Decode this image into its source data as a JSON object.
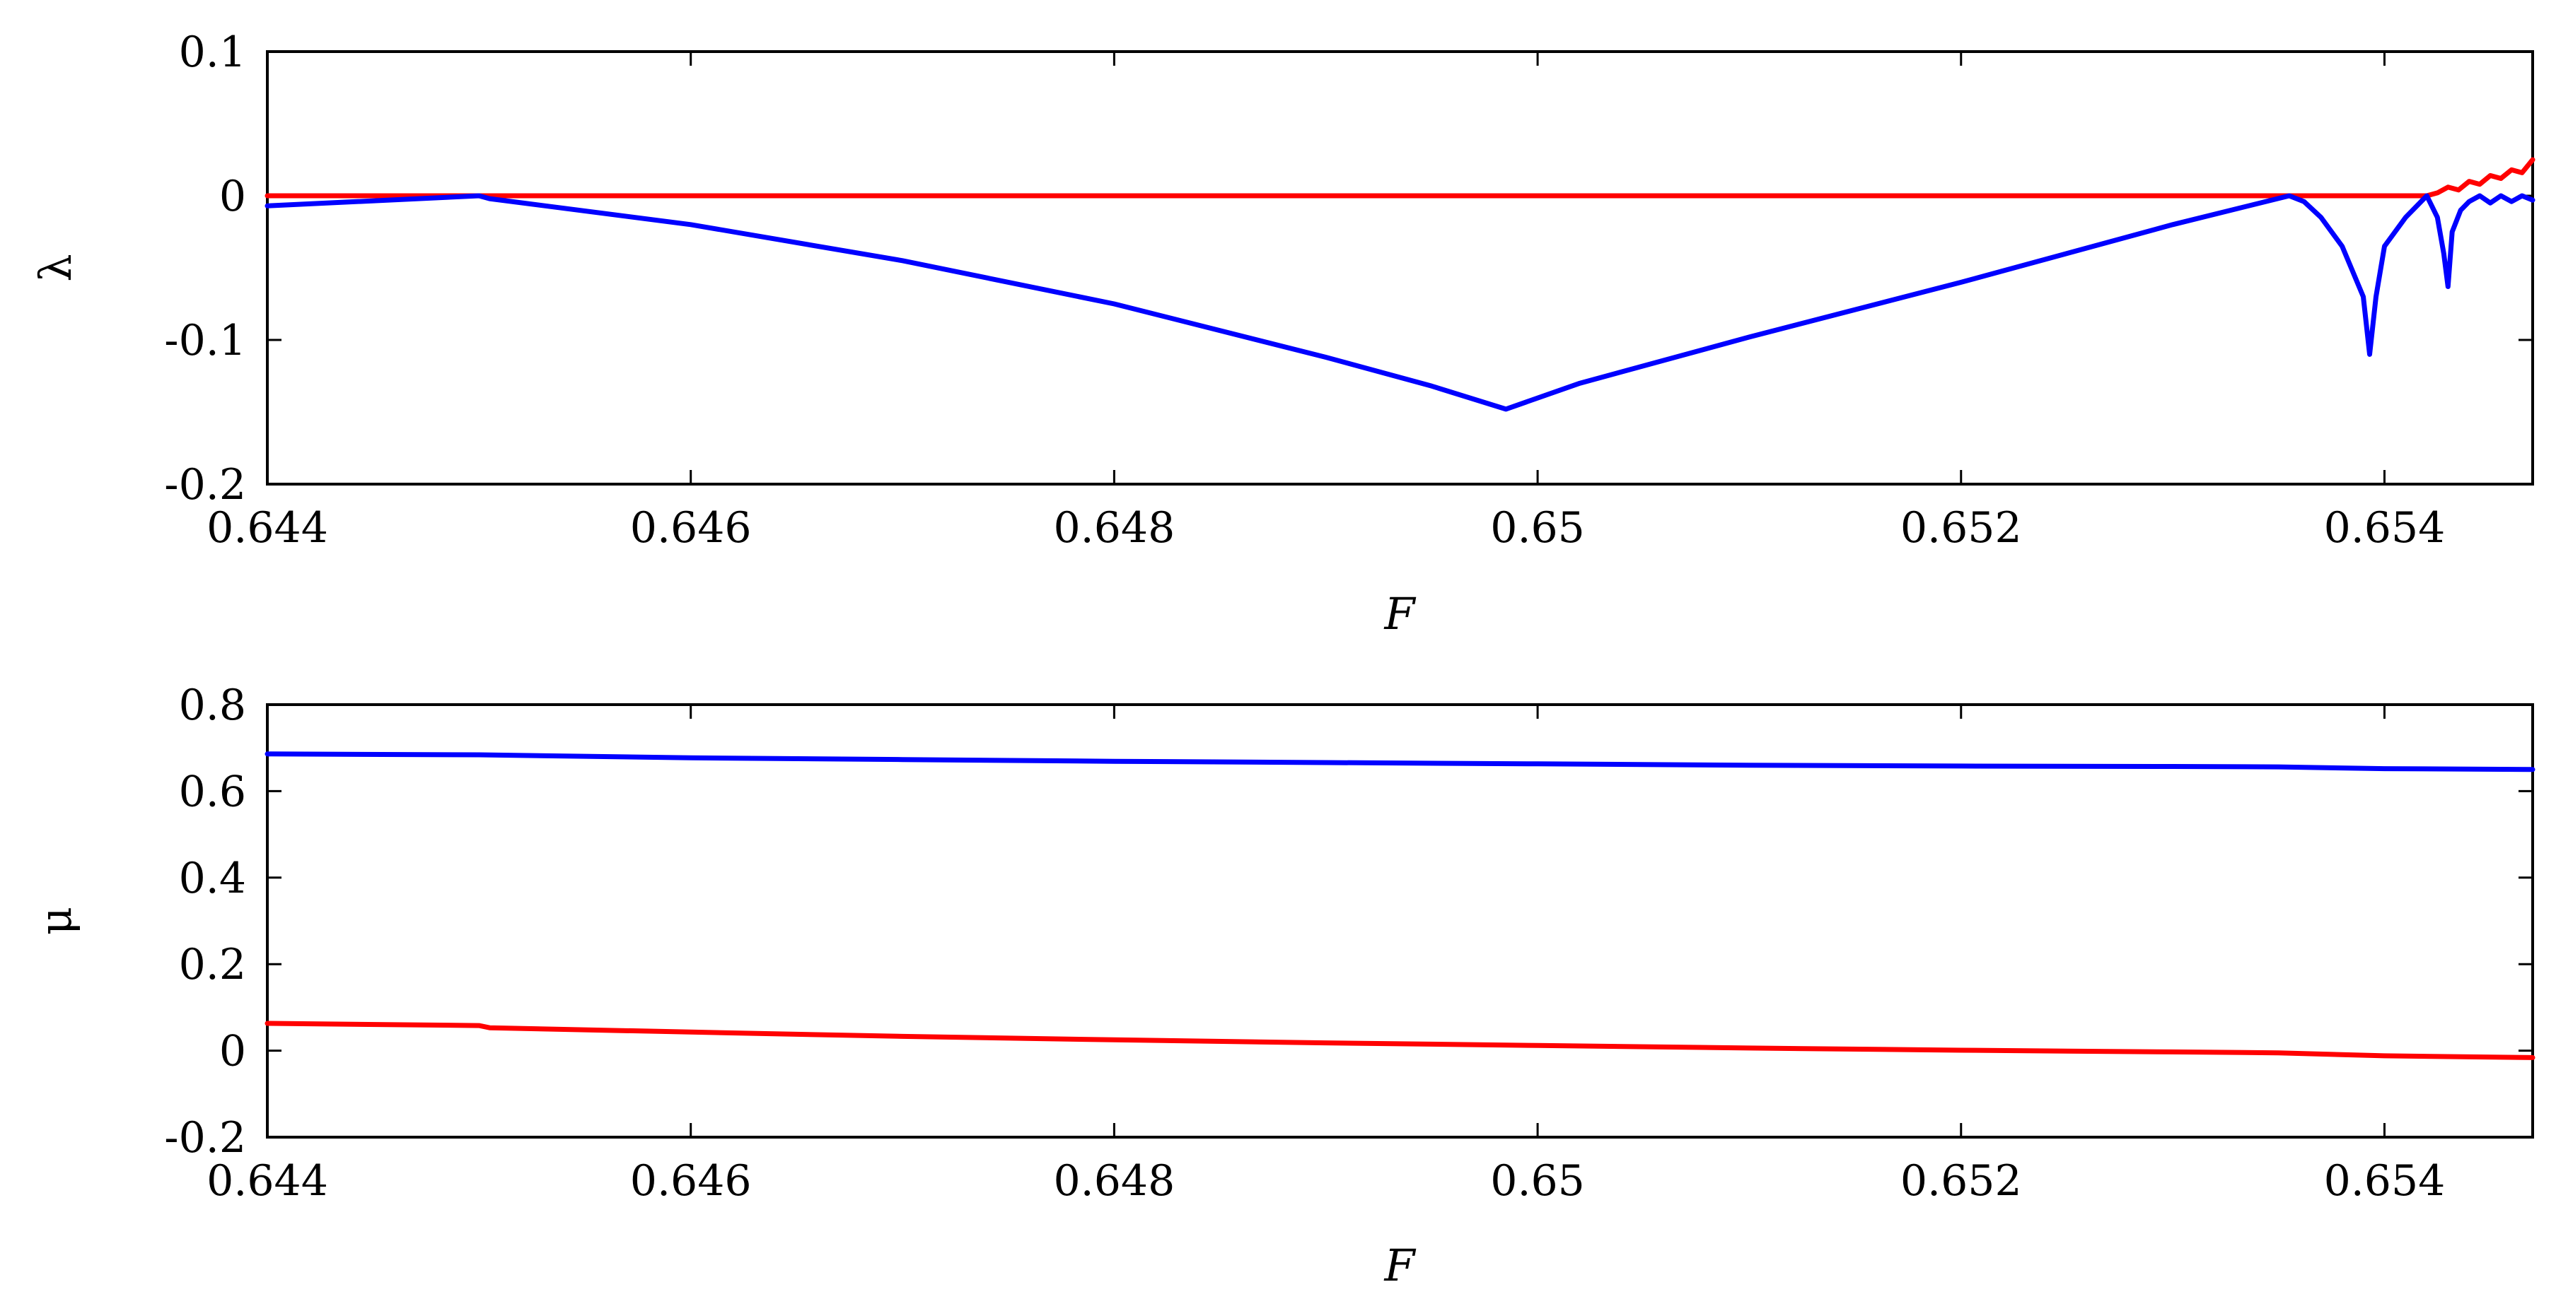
{
  "colors": {
    "red": "#ff0000",
    "blue": "#0000ff"
  },
  "chart_data": [
    {
      "type": "line",
      "xlabel": "F",
      "ylabel": "λ",
      "xlim": [
        0.644,
        0.6547
      ],
      "ylim": [
        -0.2,
        0.1
      ],
      "xticks": [
        0.644,
        0.646,
        0.648,
        0.65,
        0.652,
        0.654
      ],
      "xtick_labels": [
        "0.644",
        "0.646",
        "0.648",
        "0.65",
        "0.652",
        "0.654"
      ],
      "yticks": [
        -0.2,
        -0.1,
        0,
        0.1
      ],
      "ytick_labels": [
        "-0.2",
        "-0.1",
        "0",
        "0.1"
      ],
      "series": [
        {
          "color": "#ff0000",
          "x": [
            0.644,
            0.6542,
            0.65425,
            0.6543,
            0.65435,
            0.6544,
            0.65445,
            0.6545,
            0.65455,
            0.6546,
            0.65465,
            0.6547
          ],
          "y": [
            0,
            0,
            0.002,
            0.006,
            0.004,
            0.01,
            0.008,
            0.014,
            0.012,
            0.018,
            0.016,
            0.025
          ]
        },
        {
          "color": "#0000ff",
          "x": [
            0.644,
            0.645,
            0.64505,
            0.646,
            0.647,
            0.648,
            0.649,
            0.6495,
            0.64985,
            0.6502,
            0.651,
            0.652,
            0.653,
            0.65355,
            0.65362,
            0.6537,
            0.6538,
            0.6539,
            0.65393,
            0.65396,
            0.654,
            0.6541,
            0.6542,
            0.65425,
            0.65428,
            0.6543,
            0.65432,
            0.65436,
            0.6544,
            0.65445,
            0.6545,
            0.65455,
            0.6546,
            0.65465,
            0.6547
          ],
          "y": [
            -0.007,
            0.0,
            -0.002,
            -0.02,
            -0.045,
            -0.075,
            -0.112,
            -0.132,
            -0.148,
            -0.13,
            -0.098,
            -0.06,
            -0.02,
            0.0,
            -0.004,
            -0.015,
            -0.035,
            -0.07,
            -0.11,
            -0.07,
            -0.035,
            -0.015,
            0.0,
            -0.015,
            -0.04,
            -0.063,
            -0.025,
            -0.01,
            -0.004,
            0.0,
            -0.005,
            0.0,
            -0.004,
            0.0,
            -0.003
          ]
        }
      ]
    },
    {
      "type": "line",
      "xlabel": "F",
      "ylabel": "μ",
      "xlim": [
        0.644,
        0.6547
      ],
      "ylim": [
        -0.2,
        0.8
      ],
      "xticks": [
        0.644,
        0.646,
        0.648,
        0.65,
        0.652,
        0.654
      ],
      "xtick_labels": [
        "0.644",
        "0.646",
        "0.648",
        "0.65",
        "0.652",
        "0.654"
      ],
      "yticks": [
        -0.2,
        0,
        0.2,
        0.4,
        0.6,
        0.8
      ],
      "ytick_labels": [
        "-0.2",
        "0",
        "0.2",
        "0.4",
        "0.6",
        "0.8"
      ],
      "series": [
        {
          "color": "#0000ff",
          "x": [
            0.644,
            0.645,
            0.646,
            0.647,
            0.648,
            0.649,
            0.65,
            0.651,
            0.652,
            0.653,
            0.6535,
            0.654,
            0.6547
          ],
          "y": [
            0.686,
            0.684,
            0.677,
            0.673,
            0.669,
            0.666,
            0.663,
            0.66,
            0.658,
            0.657,
            0.656,
            0.652,
            0.65
          ]
        },
        {
          "color": "#ff0000",
          "x": [
            0.644,
            0.645,
            0.64505,
            0.646,
            0.647,
            0.648,
            0.649,
            0.65,
            0.651,
            0.652,
            0.653,
            0.6535,
            0.654,
            0.6547
          ],
          "y": [
            0.063,
            0.058,
            0.053,
            0.043,
            0.033,
            0.025,
            0.018,
            0.012,
            0.006,
            0.001,
            -0.003,
            -0.005,
            -0.012,
            -0.016
          ]
        }
      ]
    }
  ]
}
